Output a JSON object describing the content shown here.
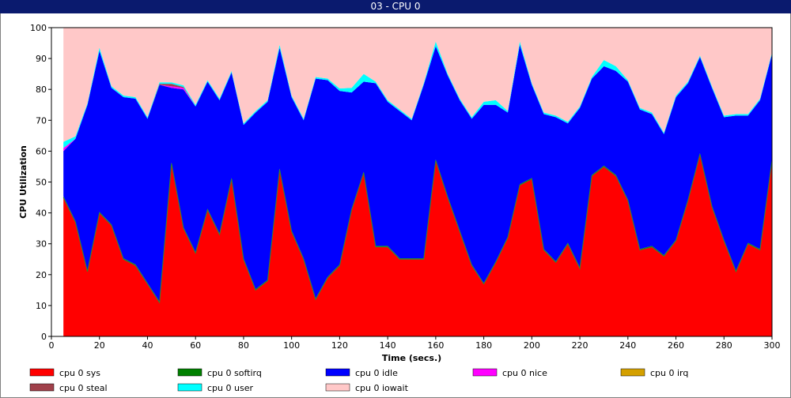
{
  "window": {
    "title": "03 - CPU 0"
  },
  "chart_data": {
    "type": "area",
    "stacked": true,
    "title": "03 - CPU 0",
    "xlabel": "Time (secs.)",
    "ylabel": "CPU Utilization",
    "xlim": [
      0,
      300
    ],
    "ylim": [
      0,
      100
    ],
    "x_ticks": [
      0,
      20,
      40,
      60,
      80,
      100,
      120,
      140,
      160,
      180,
      200,
      220,
      240,
      260,
      280,
      300
    ],
    "y_ticks": [
      0,
      10,
      20,
      30,
      40,
      50,
      60,
      70,
      80,
      90,
      100
    ],
    "grid": false,
    "legend_position": "bottom",
    "x": [
      5,
      10,
      15,
      20,
      25,
      30,
      35,
      40,
      45,
      50,
      55,
      60,
      65,
      70,
      75,
      80,
      85,
      90,
      95,
      100,
      105,
      110,
      115,
      120,
      125,
      130,
      135,
      140,
      145,
      150,
      155,
      160,
      165,
      170,
      175,
      180,
      185,
      190,
      195,
      200,
      205,
      210,
      215,
      220,
      225,
      230,
      235,
      240,
      245,
      250,
      255,
      260,
      265,
      270,
      275,
      280,
      285,
      290,
      295,
      300
    ],
    "series": [
      {
        "name": "cpu 0 sys",
        "color": "#ff0000",
        "values": [
          45,
          37,
          21,
          40,
          36,
          25,
          23,
          17,
          11,
          56,
          35,
          27,
          41,
          33,
          51,
          25,
          15,
          18,
          54,
          34,
          25,
          12,
          19,
          23,
          41,
          53,
          29,
          29,
          25,
          25,
          25,
          57,
          45,
          34,
          23,
          17,
          24,
          32,
          49,
          51,
          28,
          24,
          30,
          22,
          52,
          55,
          52,
          44,
          28,
          29,
          26,
          31,
          44,
          59,
          42,
          31,
          21,
          30,
          28,
          57
        ]
      },
      {
        "name": "cpu 0 softirq",
        "color": "#008000",
        "values": [
          0.4,
          0.3,
          0.3,
          0.3,
          0.3,
          0.3,
          0.3,
          0.3,
          0.3,
          0.3,
          0.3,
          0.3,
          0.3,
          0.3,
          0.3,
          0.3,
          0.3,
          0.3,
          0.3,
          0.3,
          0.3,
          0.3,
          0.3,
          0.3,
          0.3,
          0.3,
          0.3,
          0.3,
          0.3,
          0.3,
          0.3,
          0.3,
          0.3,
          0.3,
          0.3,
          0.3,
          0.3,
          0.3,
          0.3,
          0.3,
          0.3,
          0.3,
          0.3,
          0.3,
          0.3,
          0.3,
          0.3,
          0.3,
          0.3,
          0.3,
          0.3,
          0.3,
          0.3,
          0.3,
          0.3,
          0.3,
          0.3,
          0.3,
          0.3,
          0.3
        ]
      },
      {
        "name": "cpu 0 idle",
        "color": "#0000ff",
        "values": [
          14.6,
          26.7,
          53.7,
          52.2,
          44.2,
          52.2,
          53.7,
          53.2,
          70.2,
          24.2,
          44.7,
          47.2,
          41.2,
          43.2,
          34.2,
          43.2,
          57.2,
          57.7,
          39.2,
          43.2,
          44.7,
          71.2,
          63.7,
          56.2,
          37.7,
          29.2,
          52.7,
          46.7,
          47.7,
          44.7,
          56.2,
          36.7,
          39.2,
          42.2,
          47.2,
          57.7,
          50.7,
          40.2,
          45.2,
          30.2,
          43.7,
          46.7,
          38.7,
          51.7,
          31.2,
          32.2,
          33.7,
          38.2,
          45.2,
          42.7,
          39.2,
          46.2,
          37.7,
          31.2,
          38.2,
          39.7,
          50.2,
          41.2,
          48.2,
          34.2
        ]
      },
      {
        "name": "cpu 0 nice",
        "color": "#ff00ff",
        "values": [
          1,
          0,
          0,
          0,
          0,
          0,
          0,
          0,
          0,
          0.5,
          0.5,
          0,
          0,
          0,
          0,
          0,
          0,
          0,
          0,
          0,
          0,
          0,
          0,
          0,
          0,
          0,
          0,
          0,
          0,
          0,
          0,
          0,
          0,
          0,
          0,
          0,
          0,
          0,
          0,
          0,
          0,
          0,
          0,
          0,
          0,
          0,
          0,
          0,
          0,
          0,
          0,
          0,
          0,
          0,
          0,
          0,
          0,
          0,
          0,
          0
        ]
      },
      {
        "name": "cpu 0 irq",
        "color": "#d4a000",
        "values": [
          0,
          0,
          0,
          0,
          0,
          0,
          0,
          0,
          0,
          0,
          0,
          0,
          0,
          0,
          0,
          0,
          0,
          0,
          0,
          0,
          0,
          0,
          0,
          0,
          0,
          0,
          0,
          0,
          0,
          0,
          0,
          0,
          0,
          0,
          0,
          0,
          0,
          0,
          0,
          0,
          0,
          0,
          0,
          0,
          0,
          0,
          0,
          0,
          0,
          0,
          0,
          0,
          0,
          0,
          0,
          0,
          0,
          0,
          0,
          0
        ]
      },
      {
        "name": "cpu 0 steal",
        "color": "#a0404a",
        "values": [
          0,
          0,
          0,
          0,
          0,
          0,
          0,
          0,
          0.3,
          0.8,
          0.3,
          0,
          0,
          0,
          0,
          0,
          0,
          0,
          0,
          0,
          0,
          0,
          0,
          0,
          0,
          0,
          0,
          0,
          0,
          0,
          0,
          0,
          0,
          0,
          0,
          0,
          0,
          0,
          0,
          0,
          0,
          0,
          0,
          0,
          0,
          0,
          0,
          0,
          0,
          0,
          0,
          0,
          0,
          0,
          0,
          0,
          0,
          0,
          0,
          0
        ]
      },
      {
        "name": "cpu 0 user",
        "color": "#00ffff",
        "values": [
          2,
          0.8,
          0.5,
          1,
          0.5,
          0.5,
          0.5,
          0.5,
          0.5,
          0.5,
          0.5,
          0.5,
          0.5,
          0.5,
          0.5,
          0.5,
          0.5,
          0.5,
          1,
          0.5,
          0.5,
          0.5,
          0.5,
          0.8,
          1.5,
          2.5,
          0.5,
          0.5,
          0.5,
          0.5,
          0.5,
          1.5,
          0.5,
          0.5,
          0.5,
          1,
          1.5,
          0.5,
          1,
          0.5,
          0.5,
          0.5,
          0.5,
          0.5,
          0.5,
          2,
          1.5,
          0.5,
          0.5,
          0.5,
          0.5,
          0.5,
          0.5,
          0.5,
          0.5,
          0.5,
          0.5,
          0.5,
          0.5,
          0.5
        ]
      },
      {
        "name": "cpu 0 iowait",
        "color": "#ffc8c8",
        "values": [
          37,
          35.2,
          24.5,
          6.5,
          19,
          22,
          22.5,
          29,
          17.7,
          17.7,
          18.7,
          25,
          17,
          23,
          14,
          31,
          27,
          23.5,
          5.5,
          22,
          29.5,
          16,
          16.5,
          19.7,
          19.5,
          15,
          17.5,
          23.5,
          26.5,
          29.5,
          18,
          4.5,
          15,
          23,
          29,
          24,
          23.5,
          27,
          4.5,
          18,
          27.5,
          28.5,
          30.5,
          25.5,
          16,
          10.5,
          12.5,
          17,
          26,
          27.5,
          34,
          22,
          17.5,
          9,
          19,
          28.5,
          28,
          28,
          23,
          8
        ]
      }
    ]
  }
}
